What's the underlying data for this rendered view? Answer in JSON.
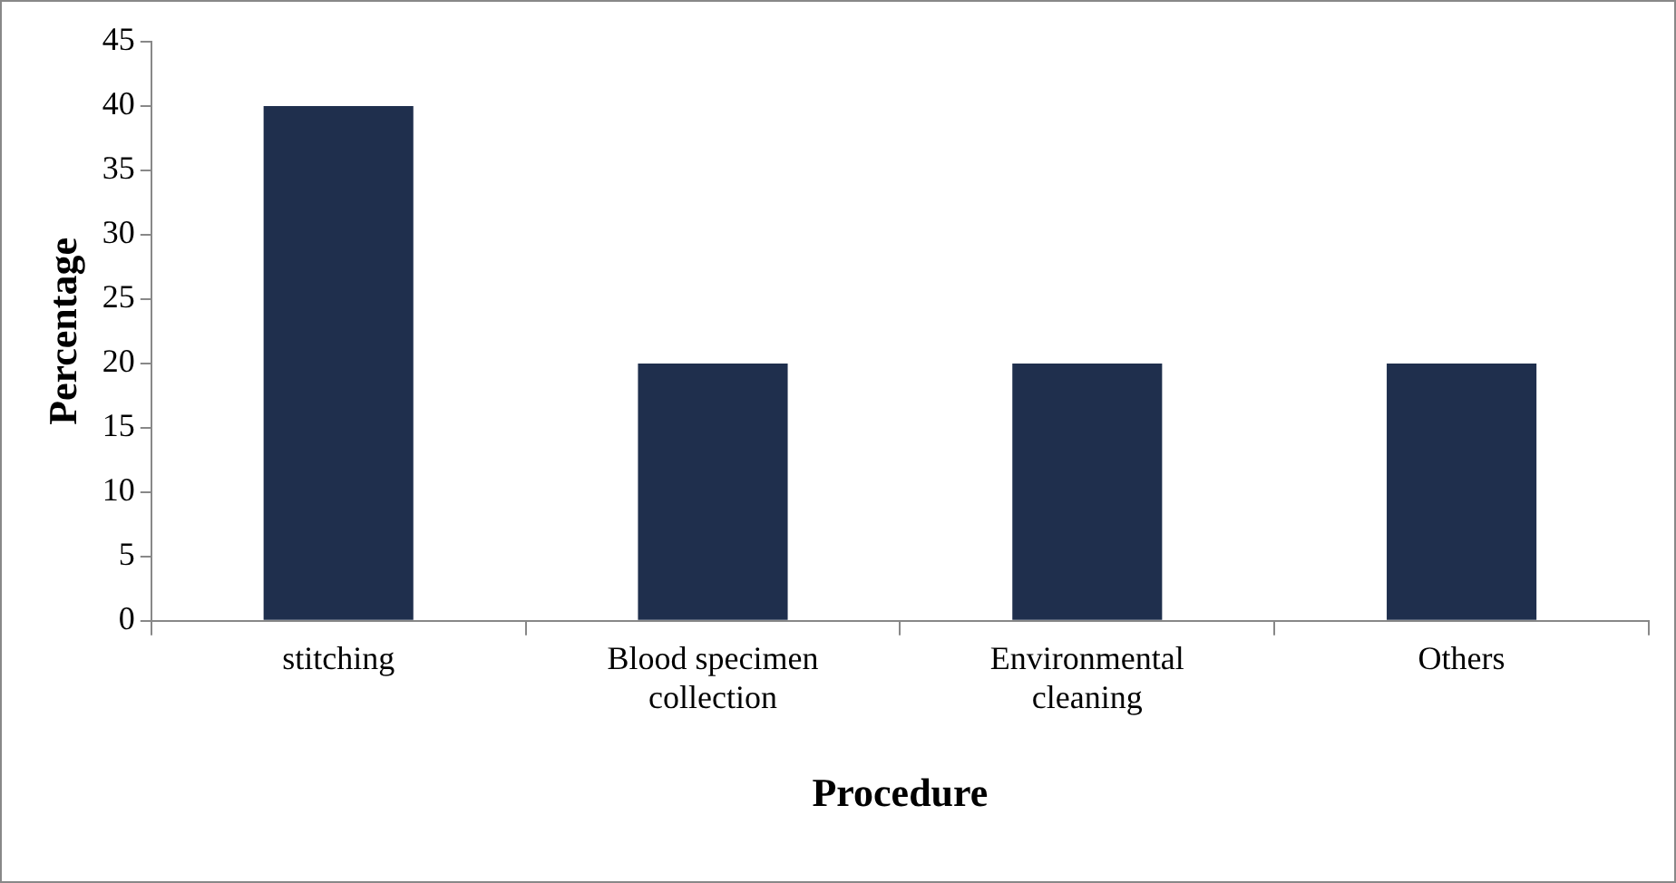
{
  "chart_data": {
    "type": "bar",
    "xlabel": "Procedure",
    "ylabel": "Percentage",
    "categories": [
      "stitching",
      "Blood specimen collection",
      "Environmental cleaning",
      "Others"
    ],
    "values": [
      40,
      20,
      20,
      20
    ],
    "color": "#1f2f4d",
    "ylim": [
      0,
      45
    ],
    "yticks": [
      0,
      5,
      10,
      15,
      20,
      25,
      30,
      35,
      40,
      45
    ],
    "grid": false,
    "legend": false
  }
}
